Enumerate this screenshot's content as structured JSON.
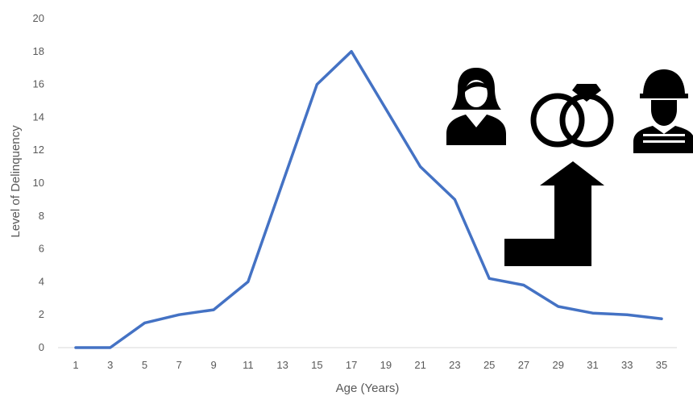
{
  "chart_data": {
    "type": "line",
    "title": "",
    "xlabel": "Age (Years)",
    "ylabel": "Level of Delinquency",
    "x": [
      1,
      3,
      5,
      7,
      9,
      11,
      13,
      15,
      17,
      19,
      21,
      23,
      25,
      27,
      29,
      31,
      33,
      35
    ],
    "xlim": [
      1,
      35
    ],
    "ylim": [
      0,
      20
    ],
    "y_ticks": [
      0,
      2,
      4,
      6,
      8,
      10,
      12,
      14,
      16,
      18,
      20
    ],
    "grid": false,
    "series": [
      {
        "values": [
          0,
          0,
          1.5,
          2.0,
          2.3,
          4.0,
          10.0,
          16.0,
          18.0,
          14.5,
          11.0,
          9.0,
          4.2,
          3.8,
          2.5,
          2.1,
          2.0,
          1.75
        ],
        "color": "#4472C4"
      }
    ]
  },
  "icons": [
    "woman-icon",
    "wedding-rings-icon",
    "soldier-icon",
    "turn-up-arrow-icon"
  ]
}
